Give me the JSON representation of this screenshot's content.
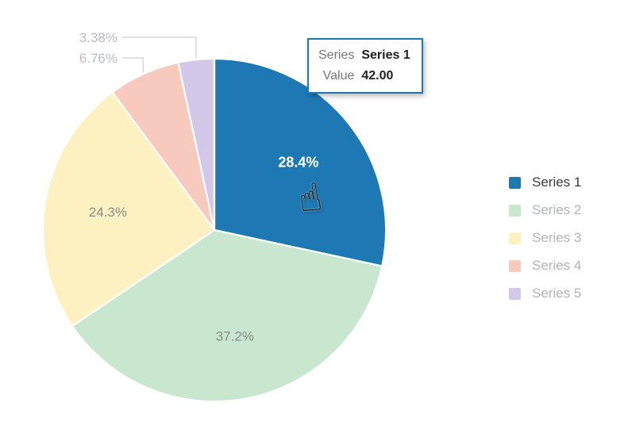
{
  "chart_data": {
    "type": "pie",
    "title": "",
    "legend_position": "right",
    "start_angle": "top",
    "direction": "clockwise",
    "series": [
      {
        "name": "Series 1",
        "value": 42,
        "percent_label": "28.4%",
        "color": "#1d78b4",
        "label_placement": "inside",
        "label_color": "#ffffff",
        "emphasis": true
      },
      {
        "name": "Series 2",
        "value": 55,
        "percent_label": "37.2%",
        "color": "#c9e6ce",
        "label_placement": "inside",
        "label_color": "#8c8c8c",
        "emphasis": false
      },
      {
        "name": "Series 3",
        "value": 36,
        "percent_label": "24.3%",
        "color": "#fdf1c2",
        "label_placement": "inside",
        "label_color": "#8c8c8c",
        "emphasis": false
      },
      {
        "name": "Series 4",
        "value": 10,
        "percent_label": "6.76%",
        "color": "#f8c9bd",
        "label_placement": "outside",
        "label_color": "#b8bcc6",
        "emphasis": false
      },
      {
        "name": "Series 5",
        "value": 5,
        "percent_label": "3.38%",
        "color": "#d3c8ea",
        "label_placement": "outside",
        "label_color": "#b8bcc6",
        "emphasis": false
      }
    ]
  },
  "tooltip": {
    "series_label": "Series",
    "series_name": "Series 1",
    "value_label": "Value",
    "value_text": "42.00"
  },
  "cursor": {
    "name": "pointing-hand-cursor",
    "glyph": "☝"
  },
  "colors": {
    "tooltip_border": "#1d78b4",
    "tooltip_label_text": "#75777a",
    "tooltip_value_text": "#222222",
    "legend_active_text": "#3a3a3a",
    "legend_inactive_text": "#b1b4b8",
    "outside_label_text": "#b8bcc6",
    "leader_line": "#d4d8de",
    "slice_stroke": "#ffffff",
    "background": "#ffffff"
  }
}
